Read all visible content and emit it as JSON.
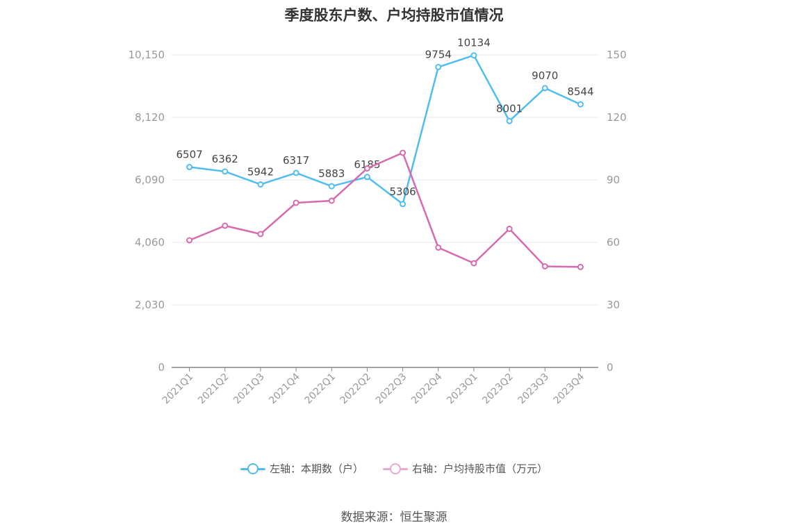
{
  "title": "季度股东户数、户均持股市值情况",
  "source": "数据来源：恒生聚源",
  "colors": {
    "left_series": "#4fbdf0",
    "right_series": "#d76aae",
    "grid": "#e0e4ef",
    "axis": "#888888",
    "tick_text": "#999999"
  },
  "legend": {
    "left_label": "左轴：本期数（户）",
    "right_label": "右轴：户均持股市值（万元）"
  },
  "chart_data": {
    "type": "line",
    "categories": [
      "2021Q1",
      "2021Q2",
      "2021Q3",
      "2021Q4",
      "2022Q1",
      "2022Q2",
      "2022Q3",
      "2022Q4",
      "2023Q1",
      "2023Q2",
      "2023Q3",
      "2023Q4"
    ],
    "left_axis": {
      "ticks": [
        0,
        2030,
        4060,
        6090,
        8120,
        10150
      ],
      "tick_labels": [
        "0",
        "2,030",
        "4,060",
        "6,090",
        "8,120",
        "10,150"
      ],
      "ylim": [
        0,
        10150
      ]
    },
    "right_axis": {
      "ticks": [
        0,
        30,
        60,
        90,
        120,
        150
      ],
      "tick_labels": [
        "0",
        "30",
        "60",
        "90",
        "120",
        "150"
      ],
      "ylim": [
        0,
        150
      ]
    },
    "grid": true,
    "legend_position": "bottom",
    "series": [
      {
        "name": "左轴：本期数（户）",
        "axis": "left",
        "values": [
          6507,
          6362,
          5942,
          6317,
          5883,
          6185,
          5306,
          9754,
          10134,
          8001,
          9070,
          8544
        ],
        "labels": [
          "6507",
          "6362",
          "5942",
          "6317",
          "5883",
          "6185",
          "5306",
          "9754",
          "10134",
          "8001",
          "9070",
          "8544"
        ]
      },
      {
        "name": "右轴：户均持股市值（万元）",
        "axis": "right",
        "values": [
          61.0,
          68.0,
          64.0,
          79.0,
          80.0,
          95.5,
          103.0,
          57.5,
          50.0,
          66.5,
          48.5,
          48.2
        ]
      }
    ]
  }
}
